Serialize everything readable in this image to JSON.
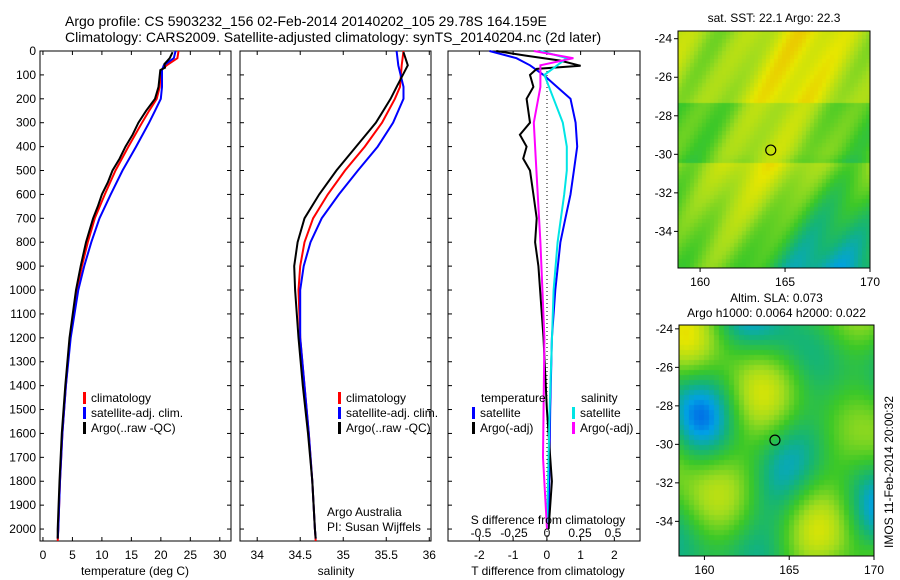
{
  "title_line1": "Argo profile: CS 5903232_156 02-Feb-2014 20140202_105 29.78S 164.159E",
  "title_line2": "Climatology: CARS2009. Satellite-adjusted climatology: synTS_20140204.nc (2d later)",
  "timestamp": "IMOS 11-Feb-2014 20:00:32",
  "colors": {
    "climatology": "#ff0000",
    "satellite": "#0000ff",
    "argo": "#000000",
    "s_satellite": "#00e5e5",
    "s_argo": "#ff00ff"
  },
  "chart_data": [
    {
      "type": "line",
      "name": "temperature",
      "xlabel": "temperature (deg C)",
      "xlim": [
        -0.5,
        31.9
      ],
      "ylim": [
        2050,
        0
      ],
      "xticks": [
        0,
        5,
        10,
        15,
        20,
        25,
        30
      ],
      "yticks": [
        0,
        100,
        200,
        300,
        400,
        500,
        600,
        700,
        800,
        900,
        1000,
        1100,
        1200,
        1300,
        1400,
        1500,
        1600,
        1700,
        1800,
        1900,
        2000
      ],
      "legend": [
        "climatology",
        "satellite-adj. clim.",
        "Argo(..raw -QC)"
      ],
      "series": [
        {
          "name": "climatology",
          "color": "#ff0000",
          "points": [
            [
              0,
              23
            ],
            [
              30,
              22.8
            ],
            [
              60,
              21
            ],
            [
              80,
              20
            ],
            [
              150,
              19.8
            ],
            [
              200,
              19.3
            ],
            [
              250,
              18
            ],
            [
              300,
              16.8
            ],
            [
              400,
              14.5
            ],
            [
              500,
              12.3
            ],
            [
              600,
              10.5
            ],
            [
              700,
              8.8
            ],
            [
              800,
              7.6
            ],
            [
              900,
              6.6
            ],
            [
              1000,
              5.8
            ],
            [
              1200,
              4.6
            ],
            [
              1400,
              3.9
            ],
            [
              1600,
              3.3
            ],
            [
              1800,
              2.9
            ],
            [
              2000,
              2.6
            ],
            [
              2050,
              2.5
            ]
          ]
        },
        {
          "name": "satellite-adj. clim.",
          "color": "#0000ff",
          "points": [
            [
              0,
              22.5
            ],
            [
              30,
              22.2
            ],
            [
              60,
              20.5
            ],
            [
              80,
              20.2
            ],
            [
              150,
              20.2
            ],
            [
              200,
              20
            ],
            [
              250,
              19
            ],
            [
              300,
              18
            ],
            [
              400,
              15.8
            ],
            [
              500,
              13.5
            ],
            [
              600,
              11.5
            ],
            [
              700,
              9.6
            ],
            [
              800,
              8.2
            ],
            [
              900,
              7
            ],
            [
              1000,
              6
            ],
            [
              1200,
              4.7
            ],
            [
              1400,
              3.9
            ],
            [
              1600,
              3.3
            ],
            [
              1800,
              2.9
            ],
            [
              2000,
              2.6
            ],
            [
              2040,
              2.5
            ]
          ]
        },
        {
          "name": "Argo(..raw -QC)",
          "color": "#000000",
          "points": [
            [
              5,
              22
            ],
            [
              30,
              21.5
            ],
            [
              55,
              20.6
            ],
            [
              70,
              20.7
            ],
            [
              80,
              19.9
            ],
            [
              150,
              19.6
            ],
            [
              200,
              19
            ],
            [
              250,
              17.5
            ],
            [
              300,
              16.2
            ],
            [
              350,
              15.2
            ],
            [
              400,
              14
            ],
            [
              450,
              13
            ],
            [
              500,
              11.8
            ],
            [
              550,
              11
            ],
            [
              600,
              10
            ],
            [
              650,
              9.3
            ],
            [
              700,
              8.5
            ],
            [
              800,
              7.3
            ],
            [
              900,
              6.4
            ],
            [
              1000,
              5.6
            ],
            [
              1200,
              4.5
            ],
            [
              1400,
              3.8
            ],
            [
              1600,
              3.2
            ],
            [
              1800,
              2.8
            ],
            [
              2000,
              2.5
            ],
            [
              2040,
              2.5
            ]
          ]
        }
      ]
    },
    {
      "type": "line",
      "name": "salinity",
      "xlabel": "salinity",
      "xlim": [
        33.8,
        36.02
      ],
      "ylim": [
        2050,
        0
      ],
      "xticks": [
        34,
        34.5,
        35,
        35.5,
        36
      ],
      "legend": [
        "climatology",
        "satellite-adj. clim.",
        "Argo(..raw -QC)"
      ],
      "annotation": [
        "Argo Australia",
        "PI: Susan Wijffels"
      ],
      "series": [
        {
          "name": "climatology",
          "color": "#ff0000",
          "points": [
            [
              0,
              35.7
            ],
            [
              60,
              35.68
            ],
            [
              150,
              35.66
            ],
            [
              200,
              35.6
            ],
            [
              300,
              35.45
            ],
            [
              400,
              35.25
            ],
            [
              500,
              35.02
            ],
            [
              600,
              34.82
            ],
            [
              700,
              34.65
            ],
            [
              800,
              34.55
            ],
            [
              900,
              34.5
            ],
            [
              1000,
              34.48
            ],
            [
              1200,
              34.5
            ],
            [
              1400,
              34.55
            ],
            [
              1600,
              34.6
            ],
            [
              1800,
              34.64
            ],
            [
              2000,
              34.67
            ],
            [
              2050,
              34.68
            ]
          ]
        },
        {
          "name": "satellite-adj. clim.",
          "color": "#0000ff",
          "points": [
            [
              0,
              35.62
            ],
            [
              60,
              35.64
            ],
            [
              150,
              35.7
            ],
            [
              200,
              35.7
            ],
            [
              300,
              35.58
            ],
            [
              400,
              35.4
            ],
            [
              500,
              35.17
            ],
            [
              600,
              34.95
            ],
            [
              700,
              34.75
            ],
            [
              800,
              34.62
            ],
            [
              900,
              34.54
            ],
            [
              1000,
              34.5
            ],
            [
              1200,
              34.5
            ],
            [
              1400,
              34.55
            ],
            [
              1600,
              34.6
            ],
            [
              1800,
              34.64
            ],
            [
              2000,
              34.67
            ],
            [
              2040,
              34.68
            ]
          ]
        },
        {
          "name": "Argo(..raw -QC)",
          "color": "#000000",
          "points": [
            [
              5,
              35.7
            ],
            [
              60,
              35.75
            ],
            [
              150,
              35.62
            ],
            [
              200,
              35.55
            ],
            [
              300,
              35.38
            ],
            [
              400,
              35.15
            ],
            [
              500,
              34.92
            ],
            [
              600,
              34.72
            ],
            [
              700,
              34.55
            ],
            [
              800,
              34.47
            ],
            [
              900,
              34.43
            ],
            [
              1000,
              34.44
            ],
            [
              1200,
              34.48
            ],
            [
              1400,
              34.53
            ],
            [
              1600,
              34.59
            ],
            [
              1800,
              34.64
            ],
            [
              2000,
              34.67
            ],
            [
              2040,
              34.68
            ]
          ]
        }
      ]
    },
    {
      "type": "line",
      "name": "differences",
      "xlabel": "T difference from climatology",
      "xlabel_top": "S difference from climatology",
      "xlim_T": [
        -2.93,
        2.76
      ],
      "xlim_S": [
        -0.5,
        0.7
      ],
      "ylim": [
        2050,
        0
      ],
      "xticks_T": [
        -2,
        -1,
        0,
        1,
        2
      ],
      "xticks_S": [
        "-0.5",
        "-0.25",
        "0",
        "0.25",
        "0.5"
      ],
      "xticks_S_values": [
        -0.5,
        -0.25,
        0,
        0.25,
        0.5
      ],
      "legend": {
        "temperature_heading": "temperature",
        "salinity_heading": "salinity",
        "t_sat": "satellite",
        "t_argo": "Argo(-adj)",
        "s_sat": "satellite",
        "s_argo": "Argo(-adj)"
      },
      "series": [
        {
          "name": "T satellite",
          "axis": "T",
          "color": "#0000ff",
          "points": [
            [
              0,
              -1.7
            ],
            [
              30,
              -0.9
            ],
            [
              60,
              -0.5
            ],
            [
              100,
              -0.1
            ],
            [
              150,
              0.3
            ],
            [
              200,
              0.7
            ],
            [
              300,
              0.85
            ],
            [
              400,
              0.9
            ],
            [
              500,
              0.8
            ],
            [
              600,
              0.7
            ],
            [
              700,
              0.55
            ],
            [
              800,
              0.4
            ],
            [
              1000,
              0.25
            ],
            [
              1200,
              0.15
            ],
            [
              1500,
              0.1
            ],
            [
              2000,
              0.05
            ]
          ]
        },
        {
          "name": "T Argo(-adj)",
          "axis": "T",
          "color": "#000000",
          "points": [
            [
              0,
              -1.5
            ],
            [
              20,
              -0.6
            ],
            [
              40,
              0.4
            ],
            [
              62,
              1.0
            ],
            [
              75,
              -0.3
            ],
            [
              100,
              -0.5
            ],
            [
              150,
              -0.4
            ],
            [
              200,
              -0.6
            ],
            [
              300,
              -0.5
            ],
            [
              350,
              -0.8
            ],
            [
              400,
              -0.6
            ],
            [
              450,
              -0.7
            ],
            [
              500,
              -0.5
            ],
            [
              600,
              -0.4
            ],
            [
              700,
              -0.3
            ],
            [
              800,
              -0.35
            ],
            [
              900,
              -0.25
            ],
            [
              1000,
              -0.2
            ],
            [
              1200,
              -0.1
            ],
            [
              1500,
              0
            ],
            [
              1700,
              0.1
            ],
            [
              1800,
              0.15
            ],
            [
              2000,
              0.05
            ]
          ]
        },
        {
          "name": "S satellite",
          "axis": "S",
          "color": "#00e5e5",
          "points": [
            [
              0,
              -0.05
            ],
            [
              30,
              0.15
            ],
            [
              100,
              -0.02
            ],
            [
              200,
              0.05
            ],
            [
              300,
              0.12
            ],
            [
              400,
              0.15
            ],
            [
              500,
              0.15
            ],
            [
              600,
              0.13
            ],
            [
              800,
              0.08
            ],
            [
              1000,
              0.05
            ],
            [
              1500,
              0.02
            ],
            [
              2000,
              0
            ]
          ]
        },
        {
          "name": "S Argo(-adj)",
          "axis": "S",
          "color": "#ff00ff",
          "points": [
            [
              0,
              -0.1
            ],
            [
              30,
              0.2
            ],
            [
              60,
              -0.05
            ],
            [
              150,
              -0.05
            ],
            [
              300,
              -0.1
            ],
            [
              500,
              -0.08
            ],
            [
              800,
              -0.05
            ],
            [
              1200,
              -0.02
            ],
            [
              1700,
              -0.03
            ],
            [
              2000,
              0
            ]
          ]
        }
      ]
    },
    {
      "type": "heatmap",
      "name": "sst-map",
      "title": "sat. SST: 22.1  Argo: 22.3",
      "xlim": [
        158.7,
        170
      ],
      "ylim": [
        -35.9,
        -23.6
      ],
      "xticks": [
        160,
        165,
        170
      ],
      "yticks": [
        -24,
        -26,
        -28,
        -30,
        -32,
        -34
      ],
      "marker": [
        164.159,
        -29.78
      ]
    },
    {
      "type": "heatmap",
      "name": "sla-map",
      "title": "Altim. SLA: 0.073",
      "subtitle": "Argo h1000: 0.0064 h2000: 0.022",
      "xlim": [
        158.5,
        170
      ],
      "ylim": [
        -35.8,
        -23.8
      ],
      "xticks": [
        160,
        165,
        170
      ],
      "yticks": [
        -24,
        -26,
        -28,
        -30,
        -32,
        -34
      ],
      "marker": [
        164.159,
        -29.78
      ]
    }
  ]
}
